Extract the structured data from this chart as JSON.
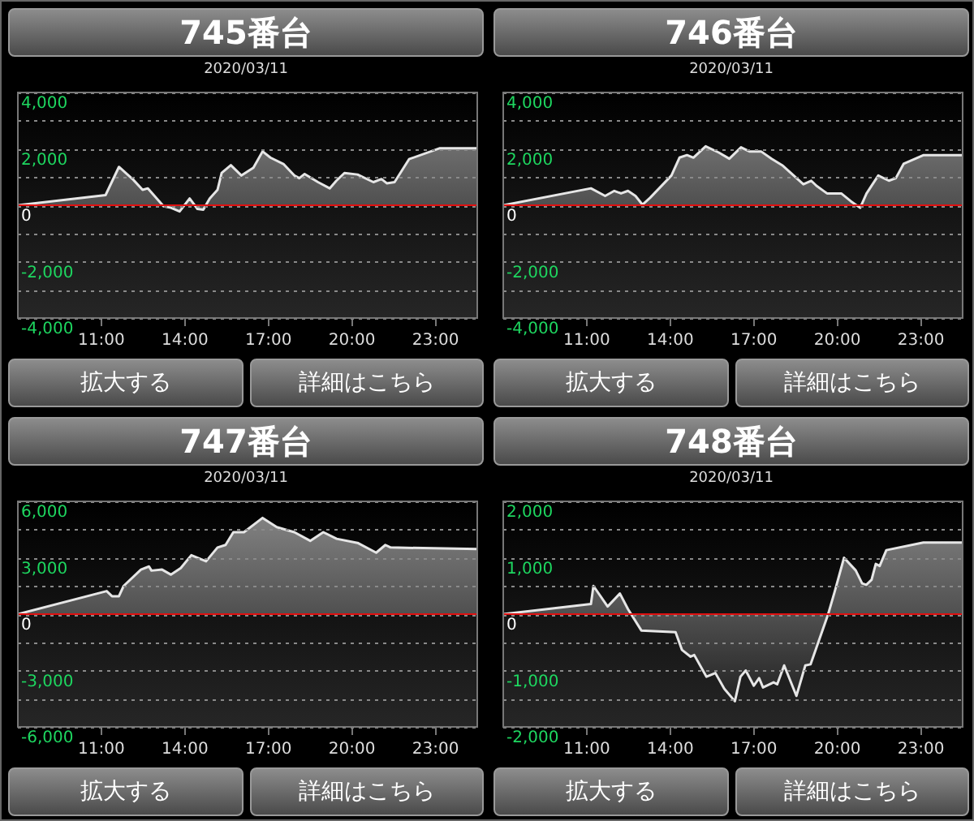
{
  "chart_data": [
    {
      "type": "area",
      "title": "745番台",
      "subtitle": "2020/03/11",
      "annotations": [
        "拡大する",
        "詳細はこちら"
      ],
      "x": [
        8,
        11.15,
        11.63,
        12.14,
        12.48,
        12.67,
        13.24,
        13.5,
        13.81,
        14.17,
        14.45,
        14.66,
        14.89,
        15.17,
        15.32,
        15.65,
        16.03,
        16.46,
        16.79,
        17.07,
        17.55,
        17.93,
        18.11,
        18.3,
        18.78,
        19.2,
        19.44,
        19.73,
        20.2,
        20.77,
        21.06,
        21.25,
        21.53,
        22.05,
        23.14,
        24.5
      ],
      "series": [
        {
          "color": "#e6e6e6",
          "values": [
            0,
            360,
            1360,
            910,
            545,
            600,
            -40,
            -90,
            -220,
            240,
            -130,
            -160,
            240,
            545,
            1145,
            1420,
            1055,
            1330,
            1910,
            1690,
            1455,
            1055,
            960,
            1110,
            820,
            600,
            870,
            1145,
            1090,
            820,
            930,
            780,
            820,
            1635,
            2020,
            2020
          ]
        }
      ],
      "xlim": [
        8,
        24.5
      ],
      "xticks": [
        {
          "value": 11,
          "label": "11:00"
        },
        {
          "value": 14,
          "label": "14:00"
        },
        {
          "value": 17,
          "label": "17:00"
        },
        {
          "value": 20,
          "label": "20:00"
        },
        {
          "value": 23,
          "label": "23:00"
        }
      ],
      "ylim": [
        -4000,
        4000
      ],
      "yticks": [
        {
          "value": -4000,
          "label": "-4,000"
        },
        {
          "value": -3000,
          "label": null
        },
        {
          "value": -2000,
          "label": "-2,000"
        },
        {
          "value": -1000,
          "label": null
        },
        {
          "value": 0,
          "label": "0"
        },
        {
          "value": 1000,
          "label": null
        },
        {
          "value": 2000,
          "label": "2,000"
        },
        {
          "value": 3000,
          "label": null
        },
        {
          "value": 4000,
          "label": "4,000"
        }
      ],
      "grid": "y",
      "ref_lines": [
        {
          "axis": "y",
          "value": 0,
          "color": "#e01010"
        }
      ]
    },
    {
      "type": "area",
      "title": "746番台",
      "subtitle": "2020/03/11",
      "annotations": [
        "拡大する",
        "詳細はこちら"
      ],
      "x": [
        8,
        11.15,
        11.66,
        11.99,
        12.23,
        12.48,
        12.75,
        13.0,
        13.28,
        14.04,
        14.33,
        14.6,
        14.83,
        15.27,
        15.74,
        16.12,
        16.54,
        16.84,
        17.26,
        17.64,
        18.02,
        18.78,
        19.06,
        19.25,
        19.63,
        20.14,
        20.48,
        20.82,
        21.05,
        21.47,
        21.85,
        22.1,
        22.38,
        23.1,
        24.5
      ],
      "series": [
        {
          "color": "#e6e6e6",
          "values": [
            0,
            600,
            330,
            510,
            420,
            510,
            330,
            20,
            270,
            1055,
            1690,
            1780,
            1690,
            2090,
            1870,
            1650,
            2055,
            1910,
            1910,
            1650,
            1420,
            745,
            870,
            690,
            420,
            420,
            145,
            -90,
            420,
            1055,
            870,
            960,
            1470,
            1780,
            1780
          ]
        }
      ],
      "xlim": [
        8,
        24.5
      ],
      "xticks": [
        {
          "value": 11,
          "label": "11:00"
        },
        {
          "value": 14,
          "label": "14:00"
        },
        {
          "value": 17,
          "label": "17:00"
        },
        {
          "value": 20,
          "label": "20:00"
        },
        {
          "value": 23,
          "label": "23:00"
        }
      ],
      "ylim": [
        -4000,
        4000
      ],
      "yticks": [
        {
          "value": -4000,
          "label": "-4,000"
        },
        {
          "value": -3000,
          "label": null
        },
        {
          "value": -2000,
          "label": "-2,000"
        },
        {
          "value": -1000,
          "label": null
        },
        {
          "value": 0,
          "label": "0"
        },
        {
          "value": 1000,
          "label": null
        },
        {
          "value": 2000,
          "label": "2,000"
        },
        {
          "value": 3000,
          "label": null
        },
        {
          "value": 4000,
          "label": "4,000"
        }
      ],
      "grid": "y",
      "ref_lines": [
        {
          "axis": "y",
          "value": 0,
          "color": "#e01010"
        }
      ]
    },
    {
      "type": "area",
      "title": "747番台",
      "subtitle": "2020/03/11",
      "annotations": [
        "拡大する",
        "詳細はこちら"
      ],
      "x": [
        8,
        11.19,
        11.38,
        11.63,
        11.8,
        12.42,
        12.71,
        12.8,
        13.18,
        13.5,
        13.85,
        14.23,
        14.76,
        15.17,
        15.46,
        15.74,
        16.12,
        16.79,
        17.3,
        17.93,
        18.5,
        18.97,
        19.45,
        20.2,
        20.87,
        21.2,
        21.39,
        24.5
      ],
      "series": [
        {
          "color": "#e6e6e6",
          "values": [
            0,
            1225,
            955,
            955,
            1500,
            2370,
            2535,
            2315,
            2370,
            2100,
            2450,
            3135,
            2810,
            3545,
            3680,
            4360,
            4360,
            5120,
            4630,
            4360,
            3900,
            4360,
            4010,
            3790,
            3270,
            3680,
            3545,
            3460
          ]
        }
      ],
      "xlim": [
        8,
        24.5
      ],
      "xticks": [
        {
          "value": 11,
          "label": "11:00"
        },
        {
          "value": 14,
          "label": "14:00"
        },
        {
          "value": 17,
          "label": "17:00"
        },
        {
          "value": 20,
          "label": "20:00"
        },
        {
          "value": 23,
          "label": "23:00"
        }
      ],
      "ylim": [
        -6000,
        6000
      ],
      "yticks": [
        {
          "value": -6000,
          "label": "-6,000"
        },
        {
          "value": -4500,
          "label": null
        },
        {
          "value": -3000,
          "label": "-3,000"
        },
        {
          "value": -1500,
          "label": null
        },
        {
          "value": 0,
          "label": "0"
        },
        {
          "value": 1500,
          "label": null
        },
        {
          "value": 3000,
          "label": "3,000"
        },
        {
          "value": 4500,
          "label": null
        },
        {
          "value": 6000,
          "label": "6,000"
        }
      ],
      "grid": "y",
      "ref_lines": [
        {
          "axis": "y",
          "value": 0,
          "color": "#e01010"
        }
      ]
    },
    {
      "type": "area",
      "title": "748番台",
      "subtitle": "2020/03/11",
      "annotations": [
        "拡大する",
        "詳細はこちら"
      ],
      "x": [
        8,
        11.15,
        11.24,
        11.75,
        12.19,
        12.48,
        12.96,
        14.19,
        14.42,
        14.73,
        14.86,
        15.3,
        15.62,
        15.94,
        16.32,
        16.52,
        16.71,
        17.0,
        17.19,
        17.33,
        17.71,
        17.84,
        18.09,
        18.53,
        18.85,
        19.04,
        19.67,
        19.9,
        20.24,
        20.66,
        20.89,
        21.04,
        21.23,
        21.38,
        21.52,
        21.76,
        23.09,
        24.5
      ],
      "series": [
        {
          "color": "#e6e6e6",
          "values": [
            0,
            180,
            500,
            135,
            365,
            90,
            -290,
            -320,
            -635,
            -755,
            -725,
            -1110,
            -1045,
            -1325,
            -1545,
            -1110,
            -1000,
            -1270,
            -1135,
            -1300,
            -1210,
            -1245,
            -910,
            -1450,
            -910,
            -890,
            0,
            390,
            1000,
            775,
            545,
            520,
            610,
            890,
            855,
            1135,
            1270,
            1270
          ]
        }
      ],
      "xlim": [
        8,
        24.5
      ],
      "xticks": [
        {
          "value": 11,
          "label": "11:00"
        },
        {
          "value": 14,
          "label": "14:00"
        },
        {
          "value": 17,
          "label": "17:00"
        },
        {
          "value": 20,
          "label": "20:00"
        },
        {
          "value": 23,
          "label": "23:00"
        }
      ],
      "ylim": [
        -2000,
        2000
      ],
      "yticks": [
        {
          "value": -2000,
          "label": "-2,000"
        },
        {
          "value": -1500,
          "label": null
        },
        {
          "value": -1000,
          "label": "-1,000"
        },
        {
          "value": -500,
          "label": null
        },
        {
          "value": 0,
          "label": "0"
        },
        {
          "value": 500,
          "label": null
        },
        {
          "value": 1000,
          "label": "1,000"
        },
        {
          "value": 1500,
          "label": null
        },
        {
          "value": 2000,
          "label": "2,000"
        }
      ],
      "grid": "y",
      "ref_lines": [
        {
          "axis": "y",
          "value": 0,
          "color": "#e01010"
        }
      ]
    }
  ]
}
